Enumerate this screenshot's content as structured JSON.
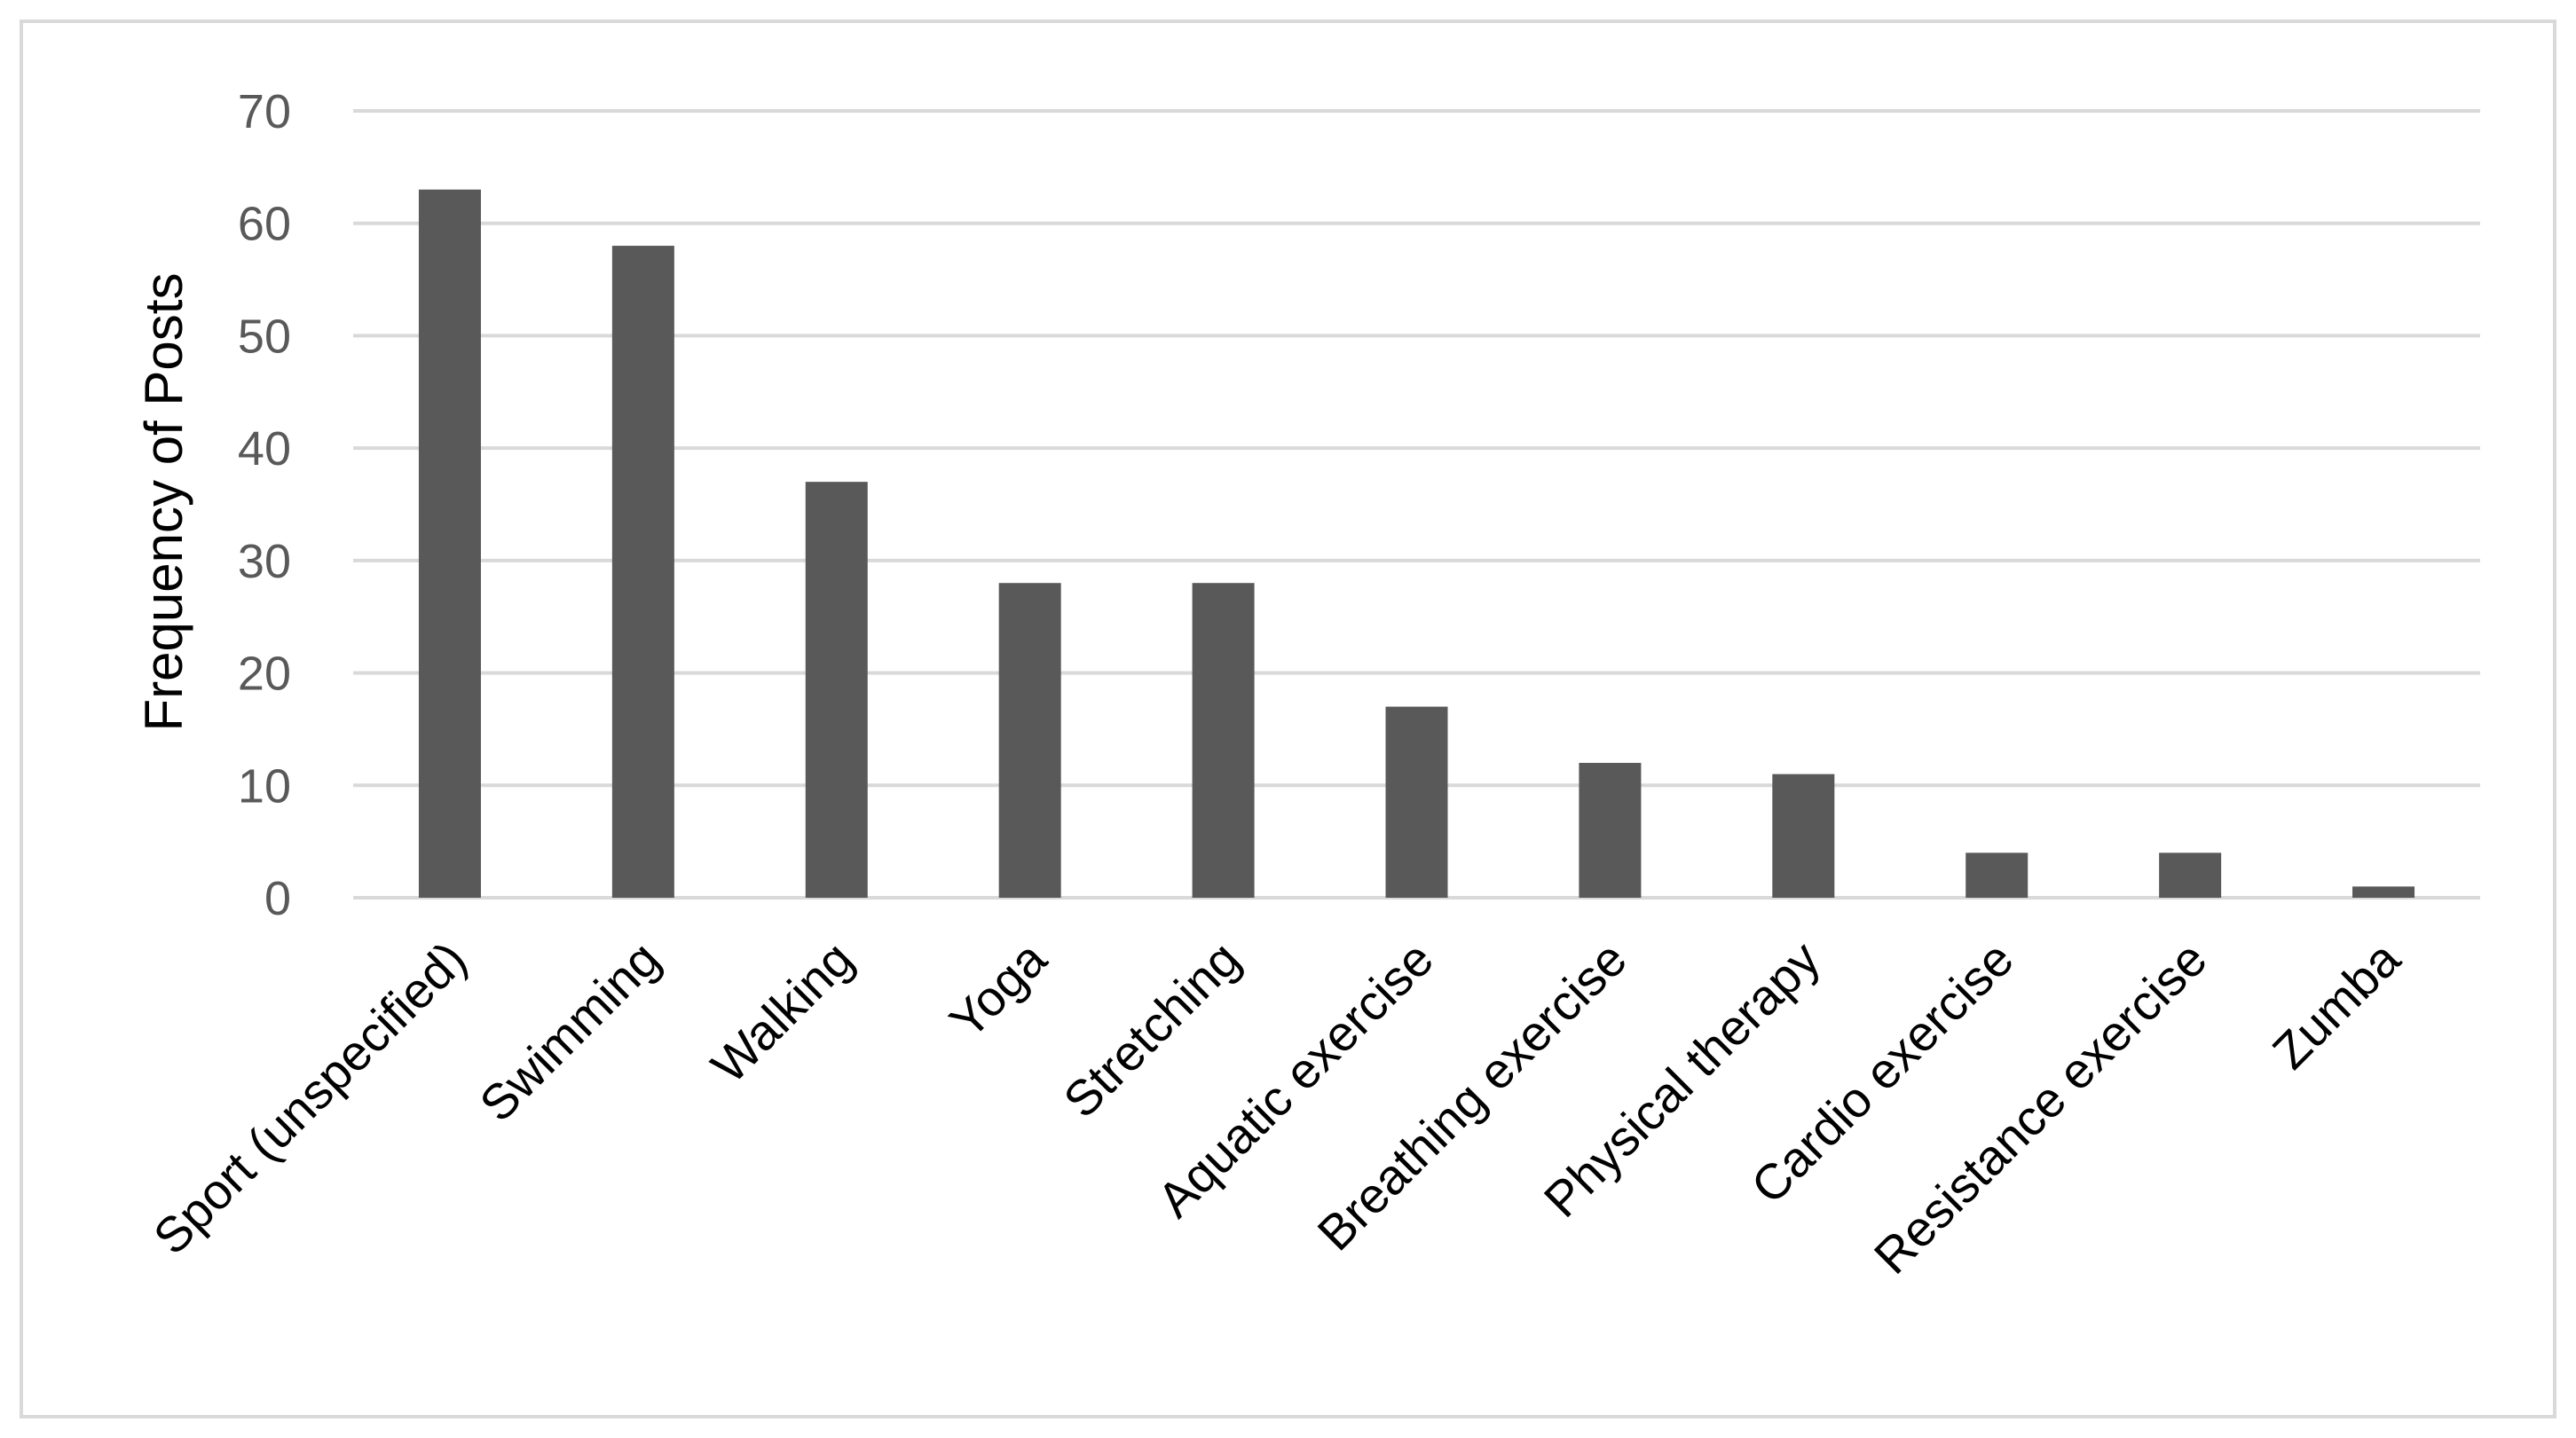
{
  "chart_data": {
    "type": "bar",
    "title": "",
    "xlabel": "",
    "ylabel": "Frequency of Posts",
    "categories": [
      "Sport (unspecified)",
      "Swimming",
      "Walking",
      "Yoga",
      "Stretching",
      "Aquatic exercise",
      "Breathing exercise",
      "Physical therapy",
      "Cardio exercise",
      "Resistance exercise",
      "Zumba"
    ],
    "values": [
      63,
      58,
      37,
      28,
      28,
      17,
      12,
      11,
      4,
      4,
      1
    ],
    "ylim": [
      0,
      70
    ],
    "yticks": [
      "0",
      "10",
      "20",
      "30",
      "40",
      "50",
      "60",
      "70"
    ],
    "grid": true,
    "legend": "none",
    "colors": {
      "bar": "#595959",
      "grid": "#d9d9d9",
      "tick_text": "#595959",
      "label_text": "#000000",
      "border": "#d9d9d9"
    }
  }
}
